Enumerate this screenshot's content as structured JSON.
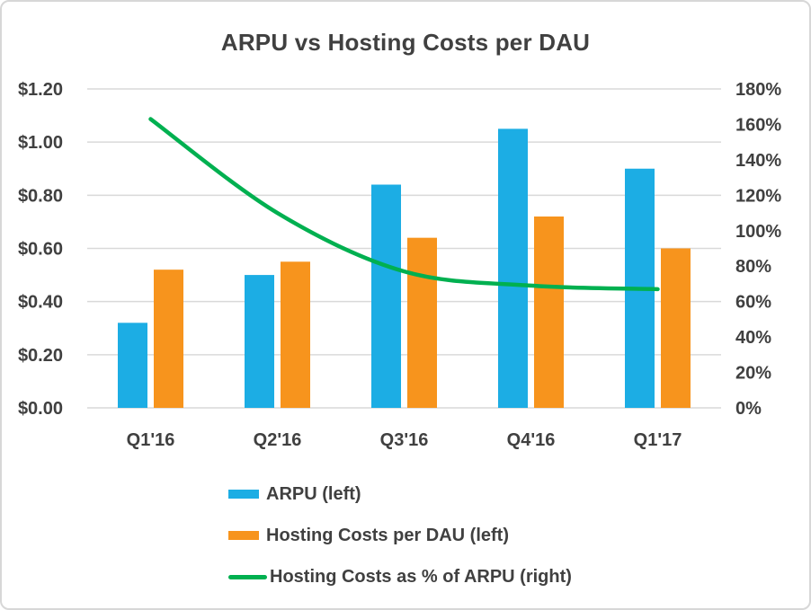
{
  "chart_data": {
    "type": "combo",
    "title": "ARPU vs Hosting Costs per DAU",
    "categories": [
      "Q1'16",
      "Q2'16",
      "Q3'16",
      "Q4'16",
      "Q1'17"
    ],
    "series": [
      {
        "name": "ARPU (left)",
        "type": "bar",
        "axis": "left",
        "color": "#1CADE4",
        "values": [
          0.32,
          0.5,
          0.84,
          1.05,
          0.9
        ]
      },
      {
        "name": "Hosting Costs per DAU (left)",
        "type": "bar",
        "axis": "left",
        "color": "#F7941D",
        "values": [
          0.52,
          0.55,
          0.64,
          0.72,
          0.6
        ]
      },
      {
        "name": "Hosting Costs as % of ARPU (right)",
        "type": "line",
        "axis": "right",
        "color": "#00B050",
        "values": [
          163,
          110,
          77,
          69,
          67
        ]
      }
    ],
    "left_axis": {
      "min": 0,
      "max": 1.2,
      "step": 0.2,
      "format": "currency",
      "ticks": [
        "$0.00",
        "$0.20",
        "$0.40",
        "$0.60",
        "$0.80",
        "$1.00",
        "$1.20"
      ]
    },
    "right_axis": {
      "min": 0,
      "max": 180,
      "step": 20,
      "format": "percent",
      "ticks": [
        "0%",
        "20%",
        "40%",
        "60%",
        "80%",
        "100%",
        "120%",
        "140%",
        "160%",
        "180%"
      ]
    },
    "grid": true,
    "legend_position": "bottom",
    "colors": {
      "grid": "#D9D9D9",
      "text": "#404040",
      "border": "#D7D7D7",
      "background": "#FFFFFF"
    }
  }
}
